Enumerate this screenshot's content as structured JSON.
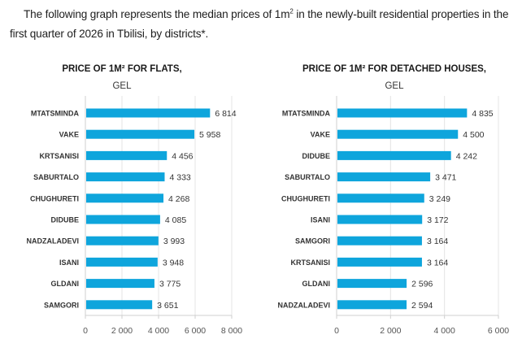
{
  "intro": {
    "text_before_sup": "The following graph represents the median prices of 1m",
    "sup": "2",
    "text_after_sup": " in the newly-built residential properties in the first quarter of 2026 in Tbilisi, by districts*."
  },
  "colors": {
    "bar": "#0ea5dc",
    "grid": "#e4e4e4"
  },
  "chart_data": [
    {
      "type": "bar",
      "orientation": "horizontal",
      "title": "PRICE OF 1M² FOR FLATS,",
      "subtitle": "GEL",
      "xlabel": "",
      "ylabel": "",
      "categories": [
        "MTATSMINDA",
        "VAKE",
        "KRTSANISI",
        "SABURTALO",
        "CHUGHURETI",
        "DIDUBE",
        "NADZALADEVI",
        "ISANI",
        "GLDANI",
        "SAMGORI"
      ],
      "values": [
        6814,
        5958,
        4456,
        4333,
        4268,
        4085,
        3993,
        3948,
        3775,
        3651
      ],
      "value_labels": [
        "6 814",
        "5 958",
        "4 456",
        "4 333",
        "4 268",
        "4 085",
        "3 993",
        "3 948",
        "3 775",
        "3 651"
      ],
      "xlim": [
        0,
        8000
      ],
      "ticks": [
        0,
        2000,
        4000,
        6000,
        8000
      ],
      "tick_labels": [
        "0",
        "2 000",
        "4 000",
        "6 000",
        "8 000"
      ],
      "grid": true,
      "legend": "none"
    },
    {
      "type": "bar",
      "orientation": "horizontal",
      "title": "PRICE OF 1M² FOR DETACHED HOUSES,",
      "subtitle": "GEL",
      "xlabel": "",
      "ylabel": "",
      "categories": [
        "MTATSMINDA",
        "VAKE",
        "DIDUBE",
        "SABURTALO",
        "CHUGHURETI",
        "ISANI",
        "SAMGORI",
        "KRTSANISI",
        "GLDANI",
        "NADZALADEVI"
      ],
      "values": [
        4835,
        4500,
        4242,
        3471,
        3249,
        3172,
        3164,
        3164,
        2596,
        2594
      ],
      "value_labels": [
        "4 835",
        "4 500",
        "4 242",
        "3 471",
        "3 249",
        "3 172",
        "3 164",
        "3 164",
        "2 596",
        "2 594"
      ],
      "xlim": [
        0,
        6000
      ],
      "ticks": [
        0,
        2000,
        4000,
        6000
      ],
      "tick_labels": [
        "0",
        "2 000",
        "4 000",
        "6 000"
      ],
      "grid": true,
      "legend": "none"
    }
  ]
}
